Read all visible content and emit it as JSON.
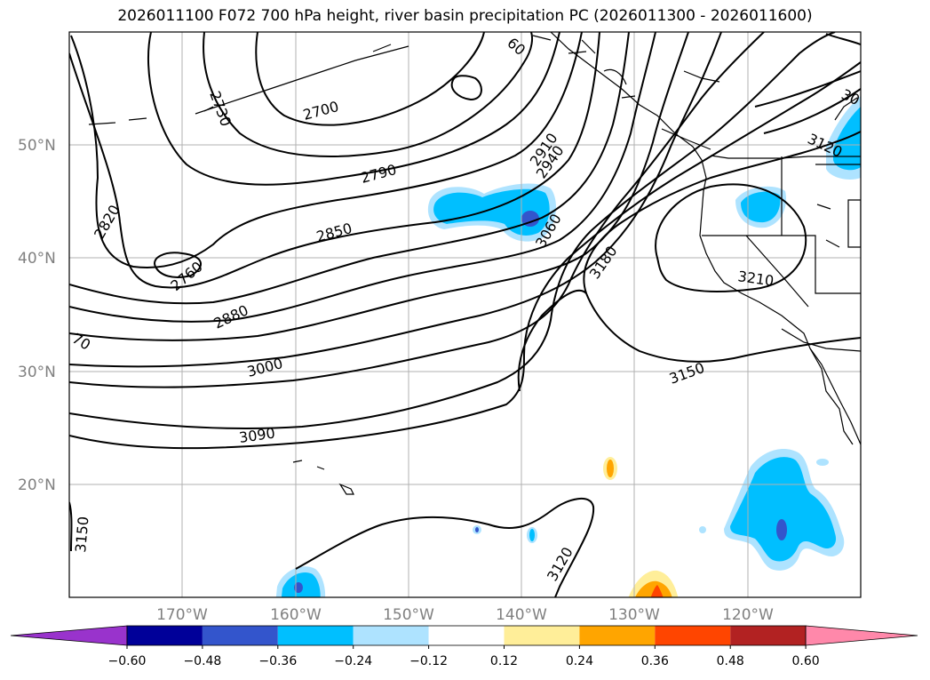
{
  "title": "2026011100 F072 700 hPa height, river basin precipitation PC (2026011300 - 2026011600)",
  "lat_labels": [
    "50°N",
    "40°N",
    "30°N",
    "20°N"
  ],
  "lon_labels": [
    "170°W",
    "160°W",
    "150°W",
    "140°W",
    "130°W",
    "120°W"
  ],
  "contour_labels": [
    "2730",
    "2700",
    "2790",
    "2820",
    "2760",
    "2850",
    "2880",
    "2910",
    "2940",
    "3000",
    "3060",
    "3090",
    "3180",
    "3210",
    "3150",
    "3120",
    "3120",
    "3150",
    "30",
    "70",
    "60"
  ],
  "colorbar": {
    "colors": [
      "#9933cc",
      "#000099",
      "#3355cc",
      "#00bfff",
      "#aee3ff",
      "#ffffff",
      "#ffee99",
      "#ffa500",
      "#ff4500",
      "#b22222",
      "#ff88aa"
    ],
    "tick_labels": [
      "−0.60",
      "−0.48",
      "−0.36",
      "−0.24",
      "−0.12",
      "0.12",
      "0.24",
      "0.36",
      "0.48",
      "0.60"
    ]
  }
}
